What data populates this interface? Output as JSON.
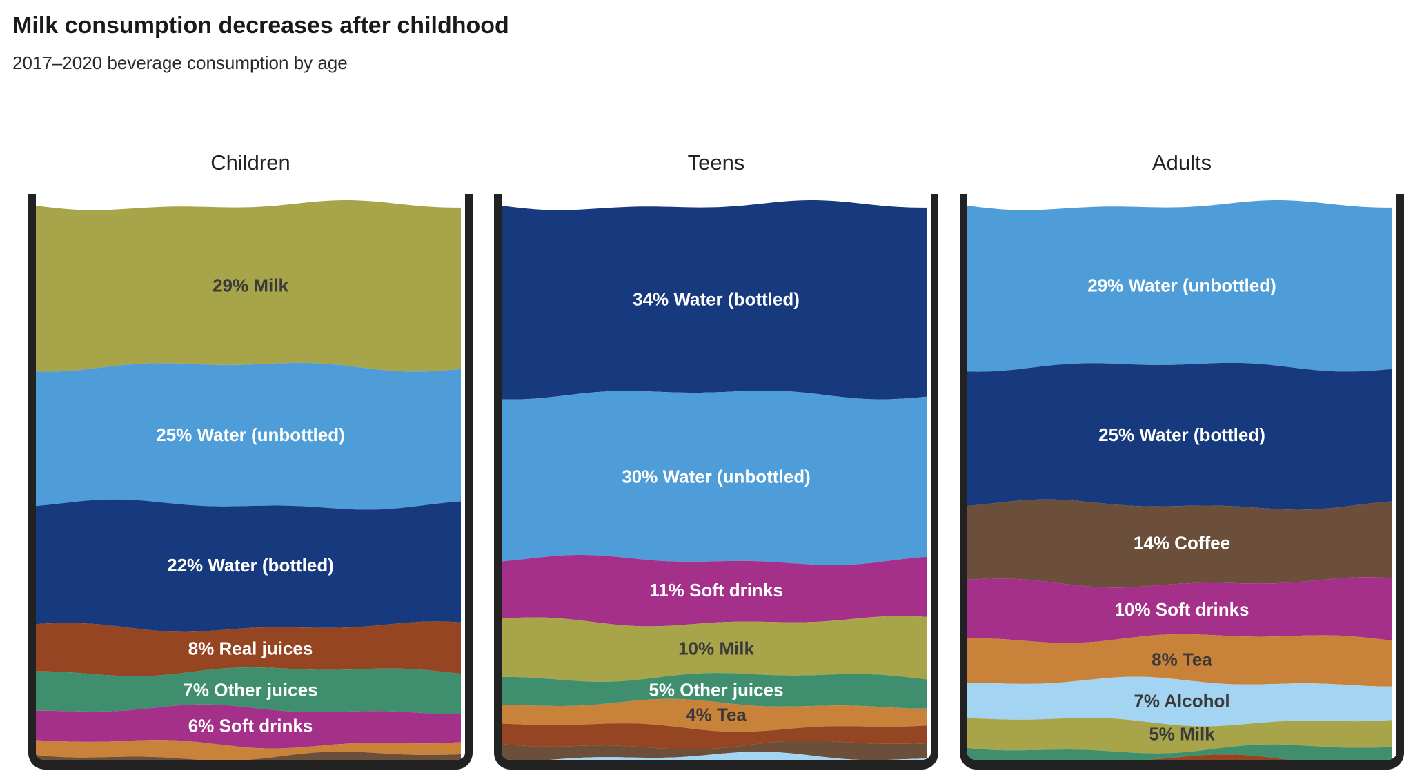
{
  "title": "Milk consumption decreases after childhood",
  "subtitle": "2017–2020 beverage consumption by age",
  "chart_data": {
    "type": "stacked-bar",
    "title": "Milk consumption decreases after childhood",
    "subtitle": "2017–2020 beverage consumption by age",
    "unit": "%",
    "groups": [
      {
        "name": "Children",
        "segments": [
          {
            "label": "29% Milk",
            "value": 29,
            "color": "#a7a449",
            "dark": true
          },
          {
            "label": "25% Water (unbottled)",
            "value": 25,
            "color": "#4f9dd8"
          },
          {
            "label": "22% Water (bottled)",
            "value": 22,
            "color": "#173a7e"
          },
          {
            "label": "8% Real juices",
            "value": 8,
            "color": "#964522"
          },
          {
            "label": "7% Other juices",
            "value": 7,
            "color": "#3f8f6e"
          },
          {
            "label": "6% Soft drinks",
            "value": 6,
            "color": "#a5308a"
          },
          {
            "label": "",
            "value": 2.3,
            "color": "#c8823a"
          },
          {
            "label": "",
            "value": 0.7,
            "color": "#6b4f3a"
          }
        ]
      },
      {
        "name": "Teens",
        "segments": [
          {
            "label": "34% Water (bottled)",
            "value": 34,
            "color": "#173a7e"
          },
          {
            "label": "30% Water (unbottled)",
            "value": 30,
            "color": "#4f9dd8"
          },
          {
            "label": "11% Soft drinks",
            "value": 11,
            "color": "#a5308a"
          },
          {
            "label": "10% Milk",
            "value": 10,
            "color": "#a7a449",
            "dark": true
          },
          {
            "label": "5% Other juices",
            "value": 5,
            "color": "#3f8f6e"
          },
          {
            "label": "4% Tea",
            "value": 4,
            "color": "#c8823a",
            "dark": true
          },
          {
            "label": "",
            "value": 3.3,
            "color": "#964522"
          },
          {
            "label": "",
            "value": 2.2,
            "color": "#6b4f3a"
          },
          {
            "label": "",
            "value": 0.5,
            "color": "#a3d5f2"
          }
        ]
      },
      {
        "name": "Adults",
        "segments": [
          {
            "label": "29% Water (unbottled)",
            "value": 29,
            "color": "#4f9dd8"
          },
          {
            "label": "25% Water (bottled)",
            "value": 25,
            "color": "#173a7e"
          },
          {
            "label": "14% Coffee",
            "value": 14,
            "color": "#6b4f3a"
          },
          {
            "label": "10% Soft drinks",
            "value": 10,
            "color": "#a5308a"
          },
          {
            "label": "8% Tea",
            "value": 8,
            "color": "#c8823a",
            "dark": true
          },
          {
            "label": "7% Alcohol",
            "value": 7,
            "color": "#a3d5f2",
            "dark": true
          },
          {
            "label": "5% Milk",
            "value": 5,
            "color": "#a7a449",
            "dark": true
          },
          {
            "label": "",
            "value": 2,
            "color": "#3f8f6e"
          },
          {
            "label": "",
            "value": 1.7,
            "color": "#964522"
          },
          {
            "label": "",
            "value": 0.3,
            "color": "#6b6b6b"
          }
        ]
      }
    ]
  }
}
